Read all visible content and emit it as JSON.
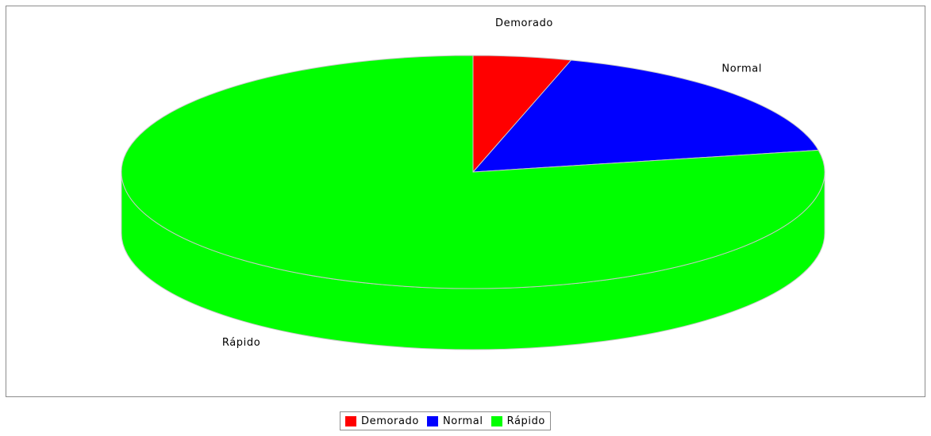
{
  "chart_data": {
    "type": "pie",
    "style": "3d",
    "title": "",
    "categories": [
      "Demorado",
      "Normal",
      "Rápido"
    ],
    "values": [
      4.5,
      17.5,
      78.0
    ],
    "value_unit": "percent (estimated from slice sizes)",
    "colors": [
      "#ff0000",
      "#0000ff",
      "#00ff00"
    ],
    "legend": {
      "position": "bottom",
      "items": [
        {
          "label": "Demorado",
          "color": "#ff0000"
        },
        {
          "label": "Normal",
          "color": "#0000ff"
        },
        {
          "label": "Rápido",
          "color": "#00ff00"
        }
      ]
    }
  }
}
